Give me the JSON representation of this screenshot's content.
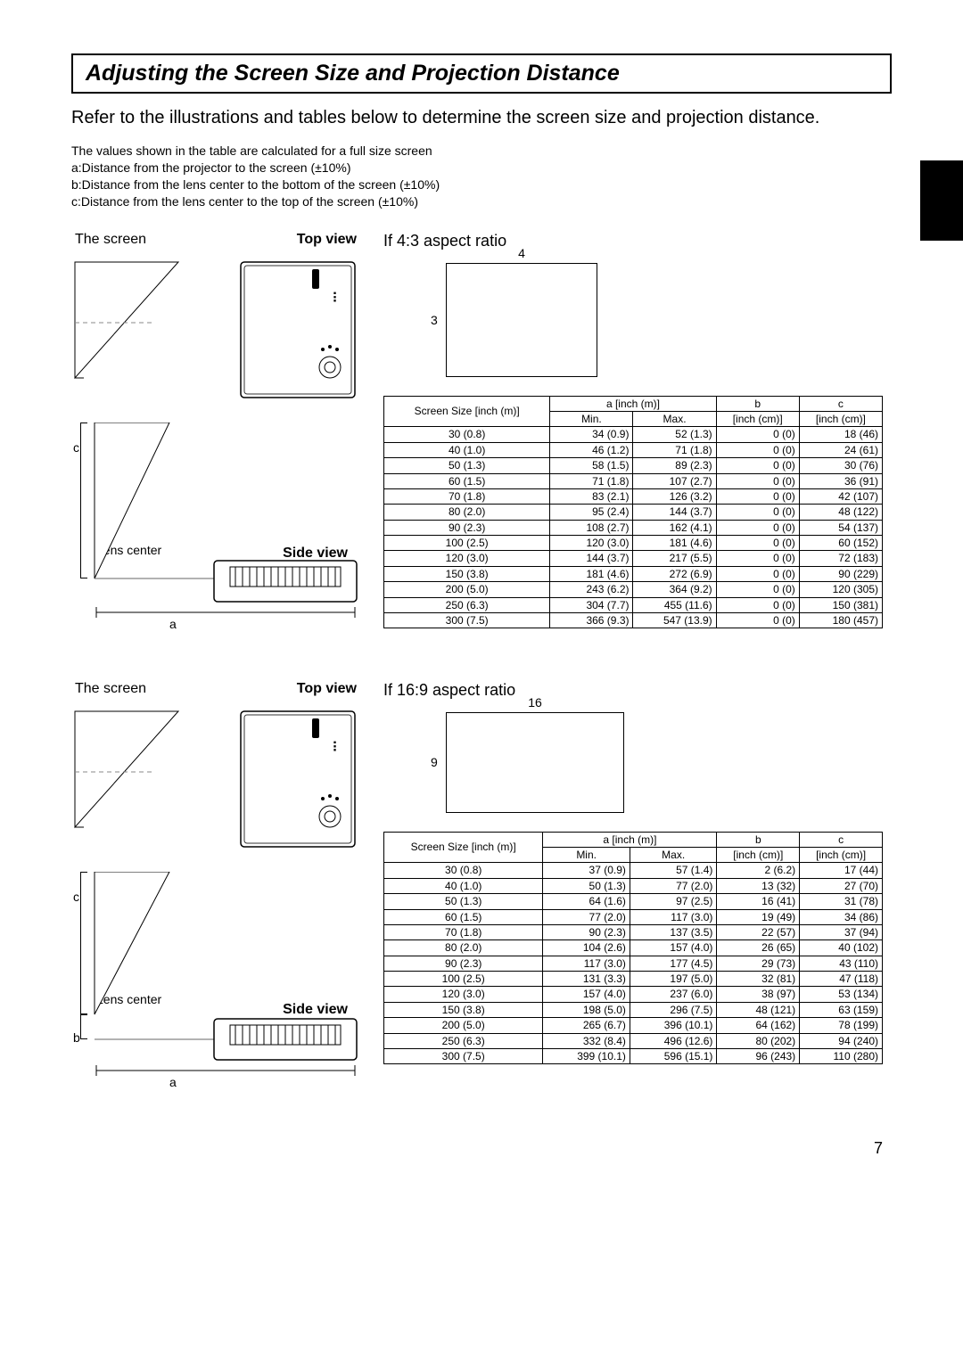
{
  "title": "Adjusting the Screen Size and Projection Distance",
  "intro": "Refer to the illustrations and tables below to determine the screen size and projection distance.",
  "notes": [
    "The values shown in the table are calculated for a full size screen",
    "a:Distance from the projector to the screen (±10%)",
    "b:Distance from the lens center to the bottom of the screen (±10%)",
    "c:Distance from the lens center to the top of the screen (±10%)"
  ],
  "labels": {
    "screen": "The screen",
    "topview": "Top view",
    "sideview": "Side view",
    "lenscenter": "Lens center",
    "a": "a",
    "b": "b",
    "c": "c"
  },
  "spec43": {
    "title": "If 4:3 aspect ratio",
    "ratio_w": "4",
    "ratio_h": "3",
    "headers": {
      "size": "Screen Size [inch (m)]",
      "a": "a [inch (m)]",
      "min": "Min.",
      "max": "Max.",
      "b": "b",
      "b_unit": "[inch (cm)]",
      "c": "c",
      "c_unit": "[inch (cm)]"
    },
    "rows": [
      {
        "size": "30 (0.8)",
        "min": "34 (0.9)",
        "max": "52 (1.3)",
        "b": "0 (0)",
        "c": "18 (46)"
      },
      {
        "size": "40 (1.0)",
        "min": "46 (1.2)",
        "max": "71 (1.8)",
        "b": "0 (0)",
        "c": "24 (61)"
      },
      {
        "size": "50 (1.3)",
        "min": "58 (1.5)",
        "max": "89 (2.3)",
        "b": "0 (0)",
        "c": "30 (76)"
      },
      {
        "size": "60 (1.5)",
        "min": "71 (1.8)",
        "max": "107 (2.7)",
        "b": "0 (0)",
        "c": "36 (91)"
      },
      {
        "size": "70 (1.8)",
        "min": "83 (2.1)",
        "max": "126 (3.2)",
        "b": "0 (0)",
        "c": "42 (107)"
      },
      {
        "size": "80 (2.0)",
        "min": "95 (2.4)",
        "max": "144 (3.7)",
        "b": "0 (0)",
        "c": "48 (122)"
      },
      {
        "size": "90 (2.3)",
        "min": "108 (2.7)",
        "max": "162 (4.1)",
        "b": "0 (0)",
        "c": "54 (137)"
      },
      {
        "size": "100 (2.5)",
        "min": "120 (3.0)",
        "max": "181 (4.6)",
        "b": "0 (0)",
        "c": "60 (152)"
      },
      {
        "size": "120 (3.0)",
        "min": "144 (3.7)",
        "max": "217 (5.5)",
        "b": "0 (0)",
        "c": "72 (183)"
      },
      {
        "size": "150 (3.8)",
        "min": "181 (4.6)",
        "max": "272 (6.9)",
        "b": "0 (0)",
        "c": "90 (229)"
      },
      {
        "size": "200 (5.0)",
        "min": "243 (6.2)",
        "max": "364 (9.2)",
        "b": "0 (0)",
        "c": "120 (305)"
      },
      {
        "size": "250 (6.3)",
        "min": "304 (7.7)",
        "max": "455 (11.6)",
        "b": "0 (0)",
        "c": "150 (381)"
      },
      {
        "size": "300 (7.5)",
        "min": "366 (9.3)",
        "max": "547 (13.9)",
        "b": "0 (0)",
        "c": "180 (457)"
      }
    ]
  },
  "spec169": {
    "title": "If 16:9 aspect ratio",
    "ratio_w": "16",
    "ratio_h": "9",
    "headers": {
      "size": "Screen Size [inch (m)]",
      "a": "a [inch (m)]",
      "min": "Min.",
      "max": "Max.",
      "b": "b",
      "b_unit": "[inch (cm)]",
      "c": "c",
      "c_unit": "[inch (cm)]"
    },
    "rows": [
      {
        "size": "30 (0.8)",
        "min": "37 (0.9)",
        "max": "57 (1.4)",
        "b": "2 (6.2)",
        "c": "17 (44)"
      },
      {
        "size": "40 (1.0)",
        "min": "50 (1.3)",
        "max": "77 (2.0)",
        "b": "13 (32)",
        "c": "27 (70)"
      },
      {
        "size": "50 (1.3)",
        "min": "64 (1.6)",
        "max": "97 (2.5)",
        "b": "16 (41)",
        "c": "31 (78)"
      },
      {
        "size": "60 (1.5)",
        "min": "77 (2.0)",
        "max": "117 (3.0)",
        "b": "19 (49)",
        "c": "34 (86)"
      },
      {
        "size": "70 (1.8)",
        "min": "90 (2.3)",
        "max": "137 (3.5)",
        "b": "22 (57)",
        "c": "37 (94)"
      },
      {
        "size": "80 (2.0)",
        "min": "104 (2.6)",
        "max": "157 (4.0)",
        "b": "26 (65)",
        "c": "40 (102)"
      },
      {
        "size": "90 (2.3)",
        "min": "117 (3.0)",
        "max": "177 (4.5)",
        "b": "29 (73)",
        "c": "43 (110)"
      },
      {
        "size": "100 (2.5)",
        "min": "131 (3.3)",
        "max": "197 (5.0)",
        "b": "32 (81)",
        "c": "47 (118)"
      },
      {
        "size": "120 (3.0)",
        "min": "157 (4.0)",
        "max": "237 (6.0)",
        "b": "38 (97)",
        "c": "53 (134)"
      },
      {
        "size": "150 (3.8)",
        "min": "198 (5.0)",
        "max": "296 (7.5)",
        "b": "48 (121)",
        "c": "63 (159)"
      },
      {
        "size": "200 (5.0)",
        "min": "265 (6.7)",
        "max": "396 (10.1)",
        "b": "64 (162)",
        "c": "78 (199)"
      },
      {
        "size": "250 (6.3)",
        "min": "332 (8.4)",
        "max": "496 (12.6)",
        "b": "80 (202)",
        "c": "94 (240)"
      },
      {
        "size": "300 (7.5)",
        "min": "399 (10.1)",
        "max": "596 (15.1)",
        "b": "96 (243)",
        "c": "110 (280)"
      }
    ]
  },
  "page": "7"
}
